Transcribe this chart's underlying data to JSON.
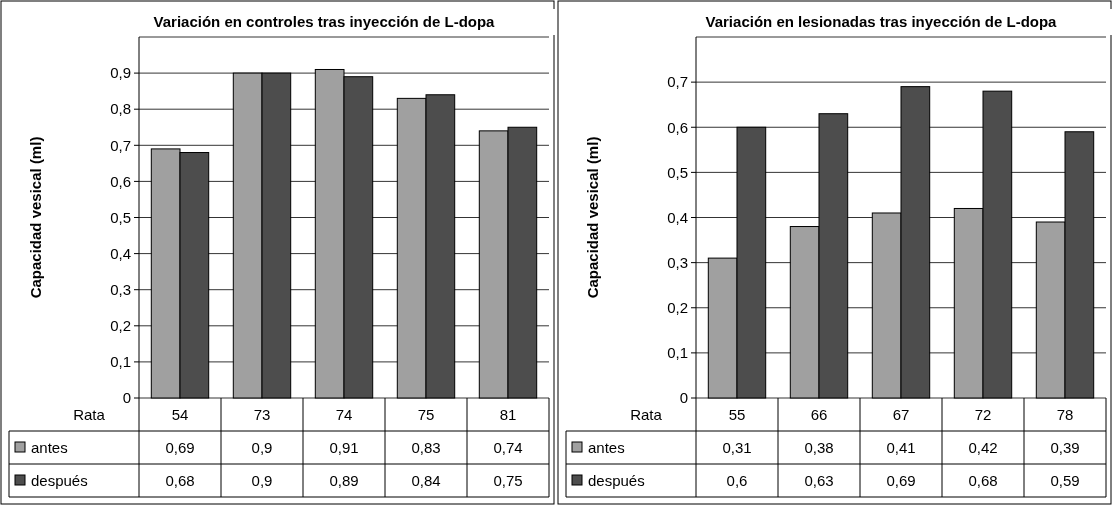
{
  "chart_data": [
    {
      "type": "bar",
      "title": "Variación en controles tras inyección de L-dopa",
      "xlabel": "Rata",
      "ylabel": "Capacidad vesical (ml)",
      "categories": [
        "54",
        "73",
        "74",
        "75",
        "81"
      ],
      "ylim": [
        0,
        1
      ],
      "yticks": [
        {
          "value": 0,
          "label": "0"
        },
        {
          "value": 0.1,
          "label": "0,1"
        },
        {
          "value": 0.2,
          "label": "0,2"
        },
        {
          "value": 0.3,
          "label": "0,3"
        },
        {
          "value": 0.4,
          "label": "0,4"
        },
        {
          "value": 0.5,
          "label": "0,5"
        },
        {
          "value": 0.6,
          "label": "0,6"
        },
        {
          "value": 0.7,
          "label": "0,7"
        },
        {
          "value": 0.8,
          "label": "0,8"
        },
        {
          "value": 0.9,
          "label": "0,9"
        }
      ],
      "grid": "y",
      "legend": "bottom",
      "series": [
        {
          "name": "antes",
          "color": "#a0a0a0",
          "values": [
            0.69,
            0.9,
            0.91,
            0.83,
            0.74
          ],
          "value_labels": [
            "0,69",
            "0,9",
            "0,91",
            "0,83",
            "0,74"
          ]
        },
        {
          "name": "después",
          "color": "#4d4d4d",
          "values": [
            0.68,
            0.9,
            0.89,
            0.84,
            0.75
          ],
          "value_labels": [
            "0,68",
            "0,9",
            "0,89",
            "0,84",
            "0,75"
          ]
        }
      ]
    },
    {
      "type": "bar",
      "title": "Variación en lesionadas tras inyección de L-dopa",
      "xlabel": "Rata",
      "ylabel": "Capacidad vesical (ml)",
      "categories": [
        "55",
        "66",
        "67",
        "72",
        "78"
      ],
      "ylim": [
        0,
        0.8
      ],
      "yticks": [
        {
          "value": 0,
          "label": "0"
        },
        {
          "value": 0.1,
          "label": "0,1"
        },
        {
          "value": 0.2,
          "label": "0,2"
        },
        {
          "value": 0.3,
          "label": "0,3"
        },
        {
          "value": 0.4,
          "label": "0,4"
        },
        {
          "value": 0.5,
          "label": "0,5"
        },
        {
          "value": 0.6,
          "label": "0,6"
        },
        {
          "value": 0.7,
          "label": "0,7"
        }
      ],
      "grid": "y",
      "legend": "bottom",
      "series": [
        {
          "name": "antes",
          "color": "#a0a0a0",
          "values": [
            0.31,
            0.38,
            0.41,
            0.42,
            0.39
          ],
          "value_labels": [
            "0,31",
            "0,38",
            "0,41",
            "0,42",
            "0,39"
          ]
        },
        {
          "name": "después",
          "color": "#4d4d4d",
          "values": [
            0.6,
            0.63,
            0.69,
            0.68,
            0.59
          ],
          "value_labels": [
            "0,6",
            "0,63",
            "0,69",
            "0,68",
            "0,59"
          ]
        }
      ]
    }
  ]
}
